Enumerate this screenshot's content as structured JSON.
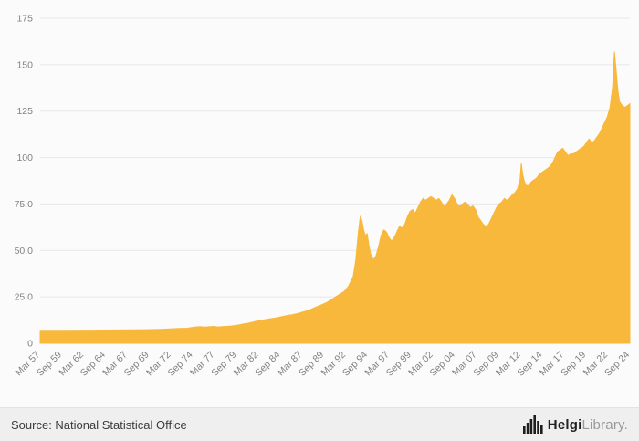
{
  "chart_data": {
    "type": "area",
    "title": "",
    "xlabel": "",
    "ylabel": "",
    "xlim": [
      1957.17,
      2024.67
    ],
    "ylim": [
      0,
      175
    ],
    "grid": true,
    "legend": "none",
    "series_color": "#F8B83C",
    "grid_color": "#e7e7e7",
    "axis_color": "#cfcfcf",
    "tick_color": "#828282",
    "y_ticks": [
      {
        "value": 0,
        "label": "0"
      },
      {
        "value": 25,
        "label": "25.0"
      },
      {
        "value": 50,
        "label": "50.0"
      },
      {
        "value": 75,
        "label": "75.0"
      },
      {
        "value": 100,
        "label": "100"
      },
      {
        "value": 125,
        "label": "125"
      },
      {
        "value": 150,
        "label": "150"
      },
      {
        "value": 175,
        "label": "175"
      }
    ],
    "x_ticks": [
      {
        "pos": 1957.17,
        "label": "Mar 57"
      },
      {
        "pos": 1959.67,
        "label": "Sep 59"
      },
      {
        "pos": 1962.17,
        "label": "Mar 62"
      },
      {
        "pos": 1964.67,
        "label": "Sep 64"
      },
      {
        "pos": 1967.17,
        "label": "Mar 67"
      },
      {
        "pos": 1969.67,
        "label": "Sep 69"
      },
      {
        "pos": 1972.17,
        "label": "Mar 72"
      },
      {
        "pos": 1974.67,
        "label": "Sep 74"
      },
      {
        "pos": 1977.17,
        "label": "Mar 77"
      },
      {
        "pos": 1979.67,
        "label": "Sep 79"
      },
      {
        "pos": 1982.17,
        "label": "Mar 82"
      },
      {
        "pos": 1984.67,
        "label": "Sep 84"
      },
      {
        "pos": 1987.17,
        "label": "Mar 87"
      },
      {
        "pos": 1989.67,
        "label": "Sep 89"
      },
      {
        "pos": 1992.17,
        "label": "Mar 92"
      },
      {
        "pos": 1994.67,
        "label": "Sep 94"
      },
      {
        "pos": 1997.17,
        "label": "Mar 97"
      },
      {
        "pos": 1999.67,
        "label": "Sep 99"
      },
      {
        "pos": 2002.17,
        "label": "Mar 02"
      },
      {
        "pos": 2004.67,
        "label": "Sep 04"
      },
      {
        "pos": 2007.17,
        "label": "Mar 07"
      },
      {
        "pos": 2009.67,
        "label": "Sep 09"
      },
      {
        "pos": 2012.17,
        "label": "Mar 12"
      },
      {
        "pos": 2014.67,
        "label": "Sep 14"
      },
      {
        "pos": 2017.17,
        "label": "Mar 17"
      },
      {
        "pos": 2019.67,
        "label": "Sep 19"
      },
      {
        "pos": 2022.17,
        "label": "Mar 22"
      },
      {
        "pos": 2024.67,
        "label": "Sep 24"
      }
    ],
    "points": [
      [
        1957.17,
        7
      ],
      [
        1960,
        7
      ],
      [
        1963,
        7.1
      ],
      [
        1966,
        7.2
      ],
      [
        1969,
        7.3
      ],
      [
        1971,
        7.5
      ],
      [
        1972,
        7.7
      ],
      [
        1973,
        8
      ],
      [
        1974,
        8.1
      ],
      [
        1974.5,
        8.5
      ],
      [
        1975,
        8.8
      ],
      [
        1975.5,
        9
      ],
      [
        1976,
        8.7
      ],
      [
        1976.5,
        8.9
      ],
      [
        1977,
        9.1
      ],
      [
        1977.5,
        8.8
      ],
      [
        1978,
        9
      ],
      [
        1978.5,
        9.1
      ],
      [
        1979,
        9.3
      ],
      [
        1979.5,
        9.6
      ],
      [
        1980,
        10
      ],
      [
        1980.5,
        10.4
      ],
      [
        1981,
        10.8
      ],
      [
        1981.5,
        11.4
      ],
      [
        1982,
        12
      ],
      [
        1982.5,
        12.4
      ],
      [
        1983,
        12.8
      ],
      [
        1983.5,
        13.2
      ],
      [
        1984,
        13.5
      ],
      [
        1984.5,
        14
      ],
      [
        1985,
        14.5
      ],
      [
        1985.5,
        15
      ],
      [
        1986,
        15.4
      ],
      [
        1986.5,
        15.9
      ],
      [
        1987,
        16.5
      ],
      [
        1987.5,
        17.2
      ],
      [
        1988,
        18
      ],
      [
        1988.5,
        19
      ],
      [
        1989,
        20
      ],
      [
        1989.5,
        21
      ],
      [
        1990,
        22
      ],
      [
        1990.5,
        23.5
      ],
      [
        1991,
        25
      ],
      [
        1991.5,
        26.5
      ],
      [
        1992,
        28
      ],
      [
        1992.5,
        31
      ],
      [
        1993,
        36
      ],
      [
        1993.3,
        45
      ],
      [
        1993.6,
        60
      ],
      [
        1993.8,
        68
      ],
      [
        1994,
        66
      ],
      [
        1994.2,
        61
      ],
      [
        1994.4,
        58
      ],
      [
        1994.6,
        59
      ],
      [
        1994.8,
        53
      ],
      [
        1995,
        48
      ],
      [
        1995.3,
        45
      ],
      [
        1995.6,
        47
      ],
      [
        1995.9,
        52
      ],
      [
        1996.2,
        58
      ],
      [
        1996.5,
        61
      ],
      [
        1996.8,
        60
      ],
      [
        1997.1,
        57
      ],
      [
        1997.4,
        55
      ],
      [
        1997.7,
        57
      ],
      [
        1998,
        60
      ],
      [
        1998.3,
        63
      ],
      [
        1998.6,
        62
      ],
      [
        1998.9,
        64
      ],
      [
        1999.2,
        68
      ],
      [
        1999.5,
        71
      ],
      [
        1999.8,
        72
      ],
      [
        2000.1,
        70
      ],
      [
        2000.4,
        73
      ],
      [
        2000.7,
        76
      ],
      [
        2001,
        78
      ],
      [
        2001.3,
        77
      ],
      [
        2001.6,
        78
      ],
      [
        2001.9,
        79
      ],
      [
        2002.2,
        78
      ],
      [
        2002.5,
        77
      ],
      [
        2002.8,
        78
      ],
      [
        2003.1,
        76
      ],
      [
        2003.4,
        74
      ],
      [
        2003.7,
        75
      ],
      [
        2004,
        77
      ],
      [
        2004.3,
        80
      ],
      [
        2004.6,
        78
      ],
      [
        2004.9,
        75
      ],
      [
        2005.2,
        74
      ],
      [
        2005.5,
        75
      ],
      [
        2005.8,
        76
      ],
      [
        2006.1,
        75
      ],
      [
        2006.4,
        73
      ],
      [
        2006.7,
        74
      ],
      [
        2007,
        72
      ],
      [
        2007.3,
        68
      ],
      [
        2007.6,
        66
      ],
      [
        2007.9,
        64
      ],
      [
        2008.2,
        63
      ],
      [
        2008.5,
        64
      ],
      [
        2008.8,
        67
      ],
      [
        2009.1,
        70
      ],
      [
        2009.4,
        73
      ],
      [
        2009.7,
        75
      ],
      [
        2010,
        76
      ],
      [
        2010.3,
        78
      ],
      [
        2010.6,
        77
      ],
      [
        2010.9,
        78
      ],
      [
        2011.2,
        80
      ],
      [
        2011.5,
        81
      ],
      [
        2011.8,
        83
      ],
      [
        2012.1,
        88
      ],
      [
        2012.25,
        97
      ],
      [
        2012.4,
        91
      ],
      [
        2012.6,
        87
      ],
      [
        2012.8,
        85
      ],
      [
        2013.1,
        85
      ],
      [
        2013.4,
        87
      ],
      [
        2013.7,
        88
      ],
      [
        2014,
        89
      ],
      [
        2014.3,
        91
      ],
      [
        2014.6,
        92
      ],
      [
        2014.9,
        93
      ],
      [
        2015.2,
        94
      ],
      [
        2015.5,
        95
      ],
      [
        2015.8,
        97
      ],
      [
        2016.1,
        100
      ],
      [
        2016.4,
        103
      ],
      [
        2016.7,
        104
      ],
      [
        2017,
        105
      ],
      [
        2017.3,
        103
      ],
      [
        2017.6,
        101
      ],
      [
        2017.9,
        102
      ],
      [
        2018.2,
        102
      ],
      [
        2018.5,
        103
      ],
      [
        2018.8,
        104
      ],
      [
        2019.1,
        105
      ],
      [
        2019.4,
        106
      ],
      [
        2019.7,
        108
      ],
      [
        2020,
        110
      ],
      [
        2020.3,
        108
      ],
      [
        2020.6,
        109
      ],
      [
        2020.9,
        111
      ],
      [
        2021.2,
        113
      ],
      [
        2021.5,
        116
      ],
      [
        2021.8,
        119
      ],
      [
        2022.1,
        122
      ],
      [
        2022.4,
        127
      ],
      [
        2022.7,
        138
      ],
      [
        2022.9,
        157
      ],
      [
        2023.1,
        147
      ],
      [
        2023.3,
        136
      ],
      [
        2023.5,
        130
      ],
      [
        2023.8,
        128
      ],
      [
        2024.1,
        127
      ],
      [
        2024.4,
        128
      ],
      [
        2024.67,
        129
      ]
    ]
  },
  "footer": {
    "source": "Source: National Statistical Office",
    "brand_bold": "Helgi",
    "brand_light": "Library."
  },
  "logo": {
    "icon": "bar-skyline-icon",
    "color": "#1e1e1e"
  }
}
